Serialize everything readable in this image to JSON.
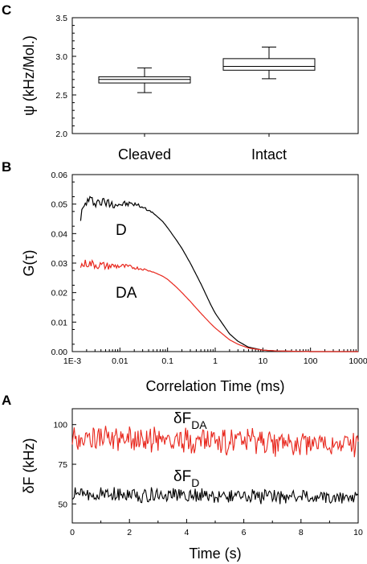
{
  "chart_data": [
    {
      "panel": "C",
      "type": "box",
      "ylabel": "ψ (kHz/Mol.)",
      "ylim": [
        2.0,
        3.5
      ],
      "yticks": [
        "2.0",
        "2.5",
        "3.0",
        "3.5"
      ],
      "categories": [
        "Cleaved",
        "Intact"
      ],
      "boxes": [
        {
          "min": 2.53,
          "q1": 2.655,
          "median": 2.7,
          "q3": 2.735,
          "max": 2.85
        },
        {
          "min": 2.71,
          "q1": 2.82,
          "median": 2.87,
          "q3": 2.97,
          "max": 3.12
        }
      ]
    },
    {
      "panel": "B",
      "type": "line",
      "xscale": "log",
      "xlabel": "Correlation Time (ms)",
      "ylabel": "G(τ)",
      "xlim": [
        0.001,
        1000
      ],
      "ylim": [
        0.0,
        0.06
      ],
      "xticks": [
        "1E-3",
        "0.01",
        "0.1",
        "1",
        "10",
        "100",
        "1000"
      ],
      "yticks": [
        "0.00",
        "0.01",
        "0.02",
        "0.03",
        "0.04",
        "0.05",
        "0.06"
      ],
      "series": [
        {
          "name": "D",
          "color": "#000000",
          "noise": 0.002,
          "x": [
            0.0015,
            0.002,
            0.003,
            0.005,
            0.01,
            0.02,
            0.03,
            0.05,
            0.08,
            0.1,
            0.15,
            0.2,
            0.3,
            0.5,
            0.8,
            1,
            2,
            3,
            5,
            10,
            20,
            50,
            100,
            1000
          ],
          "y": [
            0.046,
            0.051,
            0.051,
            0.0505,
            0.05,
            0.05,
            0.049,
            0.047,
            0.044,
            0.042,
            0.038,
            0.035,
            0.03,
            0.023,
            0.016,
            0.013,
            0.006,
            0.0035,
            0.0015,
            0.0005,
            0.0002,
            0.0001,
            0.0,
            0.0
          ]
        },
        {
          "name": "DA",
          "color": "#e8281e",
          "noise": 0.0015,
          "x": [
            0.0015,
            0.002,
            0.003,
            0.005,
            0.01,
            0.02,
            0.03,
            0.05,
            0.08,
            0.1,
            0.15,
            0.2,
            0.3,
            0.5,
            0.8,
            1,
            2,
            3,
            5,
            10,
            20,
            50,
            100,
            1000
          ],
          "y": [
            0.029,
            0.03,
            0.0295,
            0.029,
            0.029,
            0.0285,
            0.028,
            0.027,
            0.0255,
            0.0245,
            0.022,
            0.02,
            0.017,
            0.013,
            0.0095,
            0.008,
            0.004,
            0.0025,
            0.0012,
            0.0005,
            0.0002,
            0.0001,
            0.0,
            0.0
          ]
        }
      ],
      "annotations": [
        "D",
        "DA"
      ]
    },
    {
      "panel": "A",
      "type": "line",
      "xlabel": "Time (s)",
      "ylabel": "δF (kHz)",
      "xlim": [
        0,
        10
      ],
      "ylim": [
        38,
        110
      ],
      "xticks": [
        "0",
        "2",
        "4",
        "6",
        "8",
        "10"
      ],
      "yticks": [
        "50",
        "75",
        "100"
      ],
      "series": [
        {
          "name": "δF_DA",
          "color": "#e8281e",
          "mean_start": 92,
          "mean_end": 87,
          "amplitude": 7
        },
        {
          "name": "δF_D",
          "color": "#000000",
          "mean_start": 56,
          "mean_end": 54,
          "amplitude": 4
        }
      ],
      "annotations": [
        "δF",
        "DA",
        "δF",
        "D"
      ]
    }
  ],
  "labels": {
    "C": "C",
    "B": "B",
    "A": "A",
    "c_ylabel": "ψ (kHz/Mol.)",
    "b_ylabel": "G(τ)",
    "b_xlabel": "Correlation Time (ms)",
    "a_ylabel": "δF (kHz)",
    "a_xlabel": "Time (s)",
    "b_ann_D": "D",
    "b_ann_DA": "DA",
    "a_ann_DA_main": "δF",
    "a_ann_DA_sub": "DA",
    "a_ann_D_main": "δF",
    "a_ann_D_sub": "D"
  }
}
